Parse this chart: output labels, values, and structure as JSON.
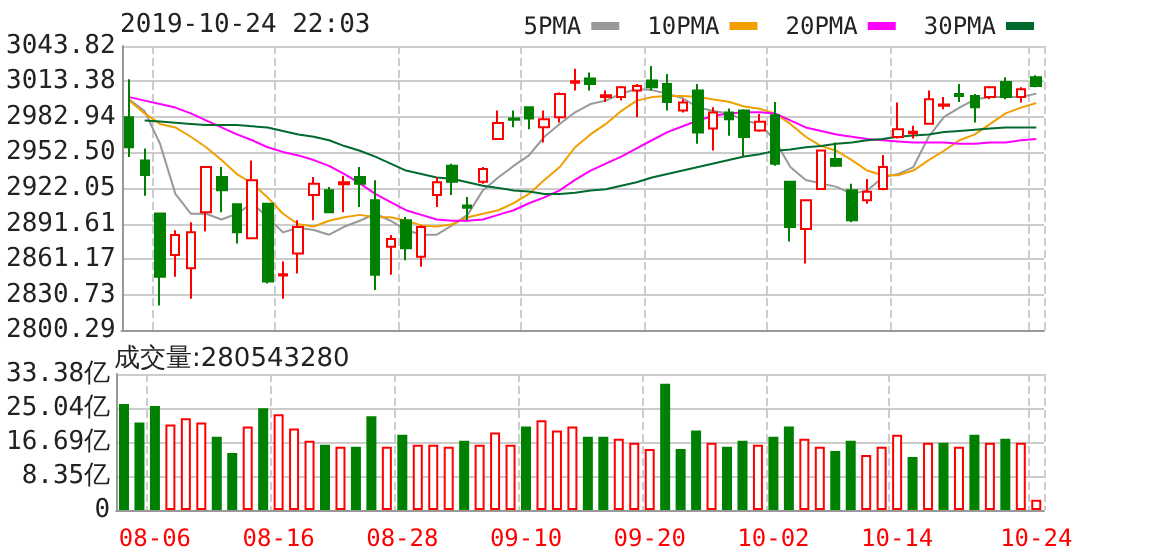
{
  "chart_data": [
    {
      "type": "candlestick",
      "title": "2019-10-24 22:03",
      "ohlc": [
        [
          2982.8,
          3015.3,
          2948.6,
          2957.1
        ],
        [
          2945.7,
          2956.0,
          2915.5,
          2933.2
        ],
        [
          2900.1,
          2900.1,
          2821.4,
          2845.9
        ],
        [
          2864.7,
          2885.8,
          2845.9,
          2881.8
        ],
        [
          2853.3,
          2892.7,
          2827.1,
          2884.1
        ],
        [
          2901.2,
          2940.0,
          2884.7,
          2940.0
        ],
        [
          2931.5,
          2940.0,
          2901.2,
          2920.1
        ],
        [
          2908.1,
          2908.1,
          2874.4,
          2884.1
        ],
        [
          2879.0,
          2945.7,
          2879.0,
          2928.6
        ],
        [
          2908.6,
          2908.6,
          2840.2,
          2841.9
        ],
        [
          2847.1,
          2859.0,
          2827.1,
          2848.2
        ],
        [
          2865.9,
          2894.4,
          2848.8,
          2888.7
        ],
        [
          2916.1,
          2931.5,
          2894.4,
          2925.8
        ],
        [
          2920.1,
          2922.9,
          2901.2,
          2901.2
        ],
        [
          2925.2,
          2932.6,
          2901.2,
          2926.9
        ],
        [
          2931.5,
          2940.0,
          2905.8,
          2925.8
        ],
        [
          2911.5,
          2928.6,
          2834.5,
          2847.6
        ],
        [
          2871.6,
          2881.8,
          2847.6,
          2878.4
        ],
        [
          2894.4,
          2897.2,
          2860.2,
          2870.4
        ],
        [
          2863.0,
          2889.8,
          2854.5,
          2888.7
        ],
        [
          2916.1,
          2931.5,
          2905.8,
          2926.9
        ],
        [
          2941.2,
          2942.9,
          2916.1,
          2927.5
        ],
        [
          2907.0,
          2914.4,
          2894.4,
          2905.2
        ],
        [
          2927.5,
          2940.0,
          2925.8,
          2938.3
        ],
        [
          2964.0,
          2988.5,
          2964.0,
          2977.7
        ],
        [
          2981.6,
          2988.5,
          2974.2,
          2980.5
        ],
        [
          2991.3,
          2991.3,
          2972.5,
          2981.6
        ],
        [
          2974.2,
          2988.5,
          2961.1,
          2981.1
        ],
        [
          2982.8,
          3003.9,
          2978.2,
          3002.7
        ],
        [
          3012.4,
          3024.4,
          3005.6,
          3013.6
        ],
        [
          3015.9,
          3021.0,
          3005.6,
          3011.3
        ],
        [
          3000.0,
          3005.6,
          2995.9,
          3001.6
        ],
        [
          3000.0,
          3009.6,
          2997.0,
          3008.4
        ],
        [
          3005.6,
          3011.3,
          2982.8,
          3009.6
        ],
        [
          3014.2,
          3026.7,
          3005.6,
          3008.4
        ],
        [
          3011.3,
          3019.9,
          2988.5,
          2995.9
        ],
        [
          2988.5,
          2998.2,
          2986.8,
          2995.3
        ],
        [
          3005.6,
          3011.3,
          2960.0,
          2969.7
        ],
        [
          2973.1,
          2991.3,
          2954.3,
          2986.8
        ],
        [
          2986.8,
          2990.2,
          2966.8,
          2981.1
        ],
        [
          2988.5,
          2989.6,
          2948.6,
          2965.7
        ],
        [
          2971.4,
          2985.6,
          2970.2,
          2978.8
        ],
        [
          2984.5,
          2995.9,
          2941.2,
          2942.9
        ],
        [
          2927.5,
          2927.5,
          2876.1,
          2888.7
        ],
        [
          2887.0,
          2911.5,
          2857.3,
          2911.5
        ],
        [
          2921.2,
          2954.3,
          2921.2,
          2954.3
        ],
        [
          2946.9,
          2961.1,
          2940.0,
          2941.2
        ],
        [
          2920.1,
          2925.8,
          2892.7,
          2894.4
        ],
        [
          2911.5,
          2929.8,
          2908.6,
          2918.9
        ],
        [
          2921.2,
          2950.3,
          2920.1,
          2940.0
        ],
        [
          2965.7,
          2995.3,
          2964.5,
          2972.5
        ],
        [
          2969.1,
          2975.4,
          2964.5,
          2970.2
        ],
        [
          2977.1,
          3005.6,
          2977.1,
          2998.2
        ],
        [
          2992.5,
          3000.0,
          2989.6,
          2993.6
        ],
        [
          3002.7,
          3011.3,
          2995.9,
          3001.0
        ],
        [
          3001.0,
          3002.7,
          2978.2,
          2991.3
        ],
        [
          3000.0,
          3009.6,
          2998.2,
          3008.4
        ],
        [
          3013.0,
          3017.0,
          2998.2,
          3000.0
        ],
        [
          3000.0,
          3008.4,
          2995.3,
          3006.7
        ],
        [
          3017.0,
          3018.7,
          3008.4,
          3009.6
        ]
      ],
      "colors": [
        "#008000",
        "#008000",
        "#008000",
        "#ff0000",
        "#ff0000",
        "#ff0000",
        "#008000",
        "#008000",
        "#ff0000",
        "#008000",
        "#ff0000",
        "#ff0000",
        "#ff0000",
        "#008000",
        "#ff0000",
        "#008000",
        "#008000",
        "#ff0000",
        "#008000",
        "#ff0000",
        "#ff0000",
        "#008000",
        "#008000",
        "#ff0000",
        "#ff0000",
        "#008000",
        "#008000",
        "#ff0000",
        "#ff0000",
        "#ff0000",
        "#008000",
        "#ff0000",
        "#ff0000",
        "#ff0000",
        "#008000",
        "#008000",
        "#ff0000",
        "#008000",
        "#ff0000",
        "#008000",
        "#008000",
        "#ff0000",
        "#008000",
        "#008000",
        "#ff0000",
        "#ff0000",
        "#008000",
        "#008000",
        "#ff0000",
        "#ff0000",
        "#ff0000",
        "#ff0000",
        "#ff0000",
        "#ff0000",
        "#008000",
        "#008000",
        "#ff0000",
        "#008000",
        "#ff0000",
        "#008000"
      ],
      "series": [
        {
          "name": "5PMA",
          "type": "line",
          "color": "#999999",
          "values": [
            2998,
            2988,
            2960,
            2917,
            2900,
            2900,
            2895,
            2900,
            2909,
            2897,
            2884,
            2888,
            2886,
            2882,
            2889,
            2894,
            2900,
            2894,
            2886,
            2882,
            2882,
            2890,
            2899,
            2920,
            2931,
            2941,
            2950,
            2966,
            2977,
            2987,
            2994,
            2997,
            3003,
            3007,
            3006,
            3003,
            2999,
            2991,
            2988,
            2986,
            2980,
            2977,
            2963,
            2940,
            2929,
            2926,
            2923,
            2917,
            2920,
            2931,
            2934,
            2940,
            2966,
            2983,
            2991,
            2998,
            3000,
            3000,
            3000,
            3003
          ]
        },
        {
          "name": "10PMA",
          "type": "line",
          "color": "#f0a000",
          "values": [
            2997,
            2986,
            2977,
            2974,
            2966,
            2957,
            2946,
            2934,
            2926,
            2914,
            2900,
            2891,
            2889,
            2894,
            2897,
            2899,
            2897,
            2897,
            2894,
            2890,
            2889,
            2891,
            2897,
            2900,
            2903,
            2909,
            2917,
            2929,
            2940,
            2957,
            2968,
            2977,
            2988,
            2997,
            3000,
            3001,
            3001,
            3000,
            2998,
            2996,
            2992,
            2990,
            2986,
            2977,
            2966,
            2958,
            2954,
            2946,
            2937,
            2933,
            2933,
            2937,
            2946,
            2954,
            2963,
            2968,
            2977,
            2986,
            2991,
            2995
          ]
        },
        {
          "name": "20PMA",
          "type": "line",
          "color": "#ff00ff",
          "values": [
            3000,
            2997,
            2994,
            2991,
            2986,
            2980,
            2974,
            2968,
            2963,
            2957,
            2953,
            2950,
            2946,
            2941,
            2934,
            2926,
            2917,
            2910,
            2903,
            2899,
            2895,
            2894,
            2894,
            2895,
            2899,
            2903,
            2909,
            2914,
            2920,
            2929,
            2937,
            2943,
            2949,
            2956,
            2963,
            2970,
            2975,
            2980,
            2984,
            2986,
            2987,
            2987,
            2986,
            2980,
            2974,
            2971,
            2968,
            2966,
            2964,
            2963,
            2962,
            2961,
            2961,
            2961,
            2960,
            2960,
            2961,
            2961,
            2963,
            2964
          ]
        },
        {
          "name": "30PMA",
          "type": "line",
          "color": "#006a2f",
          "values": [
            null,
            2980,
            2979,
            2978,
            2977,
            2976,
            2976,
            2976,
            2975,
            2974,
            2971,
            2968,
            2966,
            2963,
            2958,
            2954,
            2949,
            2943,
            2937,
            2934,
            2931,
            2930,
            2927,
            2924,
            2922,
            2920,
            2919,
            2917,
            2917,
            2918,
            2920,
            2921,
            2924,
            2927,
            2931,
            2934,
            2937,
            2940,
            2943,
            2946,
            2949,
            2951,
            2954,
            2955,
            2957,
            2958,
            2960,
            2961,
            2963,
            2964,
            2966,
            2967,
            2968,
            2970,
            2971,
            2972,
            2973,
            2974,
            2974,
            2974
          ]
        }
      ],
      "ylim": [
        2800.29,
        3043.82
      ],
      "yticks": [
        2800.29,
        2830.73,
        2861.17,
        2891.61,
        2922.05,
        {
          "value": 2952.5,
          "label": "2952.50"
        },
        2982.94,
        3013.38,
        3043.82
      ],
      "grid": true,
      "legend": "top right",
      "tick_labels": "y"
    },
    {
      "type": "bar",
      "annotations": [
        "成交量:280543280"
      ],
      "categories": [
        null,
        null,
        "08-06",
        null,
        null,
        null,
        null,
        null,
        null,
        null,
        "08-16",
        null,
        null,
        null,
        null,
        null,
        null,
        null,
        "08-28",
        null,
        null,
        null,
        null,
        null,
        null,
        null,
        "09-10",
        null,
        null,
        null,
        null,
        null,
        null,
        null,
        "09-20",
        null,
        null,
        null,
        null,
        null,
        null,
        null,
        "10-02",
        null,
        null,
        null,
        null,
        null,
        null,
        null,
        "10-14",
        null,
        null,
        null,
        null,
        null,
        null,
        null,
        null,
        "10-24"
      ],
      "values": [
        26,
        21.5,
        25.5,
        21,
        22.5,
        21.5,
        18,
        14,
        20.5,
        25,
        23.5,
        20,
        17,
        16,
        15.5,
        15.5,
        23,
        15.5,
        18.5,
        16,
        16,
        15.5,
        17,
        16,
        19,
        16,
        20.5,
        22,
        19.5,
        20.5,
        18,
        18,
        17.5,
        16.5,
        15,
        31,
        15,
        19.5,
        16.5,
        15.5,
        17,
        16,
        18,
        20.5,
        17.5,
        15.5,
        14.5,
        17,
        13.5,
        15.5,
        18.5,
        13,
        16.5,
        16.5,
        15.5,
        18.5,
        16.5,
        17.5,
        16.5,
        2.5
      ],
      "colors": [
        "#008000",
        "#008000",
        "#008000",
        "#ff0000",
        "#ff0000",
        "#ff0000",
        "#008000",
        "#008000",
        "#ff0000",
        "#008000",
        "#ff0000",
        "#ff0000",
        "#ff0000",
        "#008000",
        "#ff0000",
        "#008000",
        "#008000",
        "#ff0000",
        "#008000",
        "#ff0000",
        "#ff0000",
        "#ff0000",
        "#008000",
        "#ff0000",
        "#ff0000",
        "#ff0000",
        "#008000",
        "#ff0000",
        "#ff0000",
        "#ff0000",
        "#008000",
        "#008000",
        "#ff0000",
        "#ff0000",
        "#ff0000",
        "#008000",
        "#008000",
        "#008000",
        "#ff0000",
        "#008000",
        "#008000",
        "#ff0000",
        "#008000",
        "#008000",
        "#ff0000",
        "#ff0000",
        "#008000",
        "#008000",
        "#ff0000",
        "#ff0000",
        "#ff0000",
        "#008000",
        "#ff0000",
        "#008000",
        "#ff0000",
        "#008000",
        "#ff0000",
        "#008000",
        "#ff0000",
        "#ff0000"
      ],
      "ylim": [
        0,
        33.38
      ],
      "yticks": [
        0,
        {
          "value": 8.35,
          "label": "8.35亿"
        },
        {
          "value": 16.69,
          "label": "16.69亿"
        },
        {
          "value": 25.04,
          "label": "25.04亿"
        },
        {
          "value": 33.38,
          "label": "33.38亿"
        }
      ],
      "grid": true
    }
  ]
}
